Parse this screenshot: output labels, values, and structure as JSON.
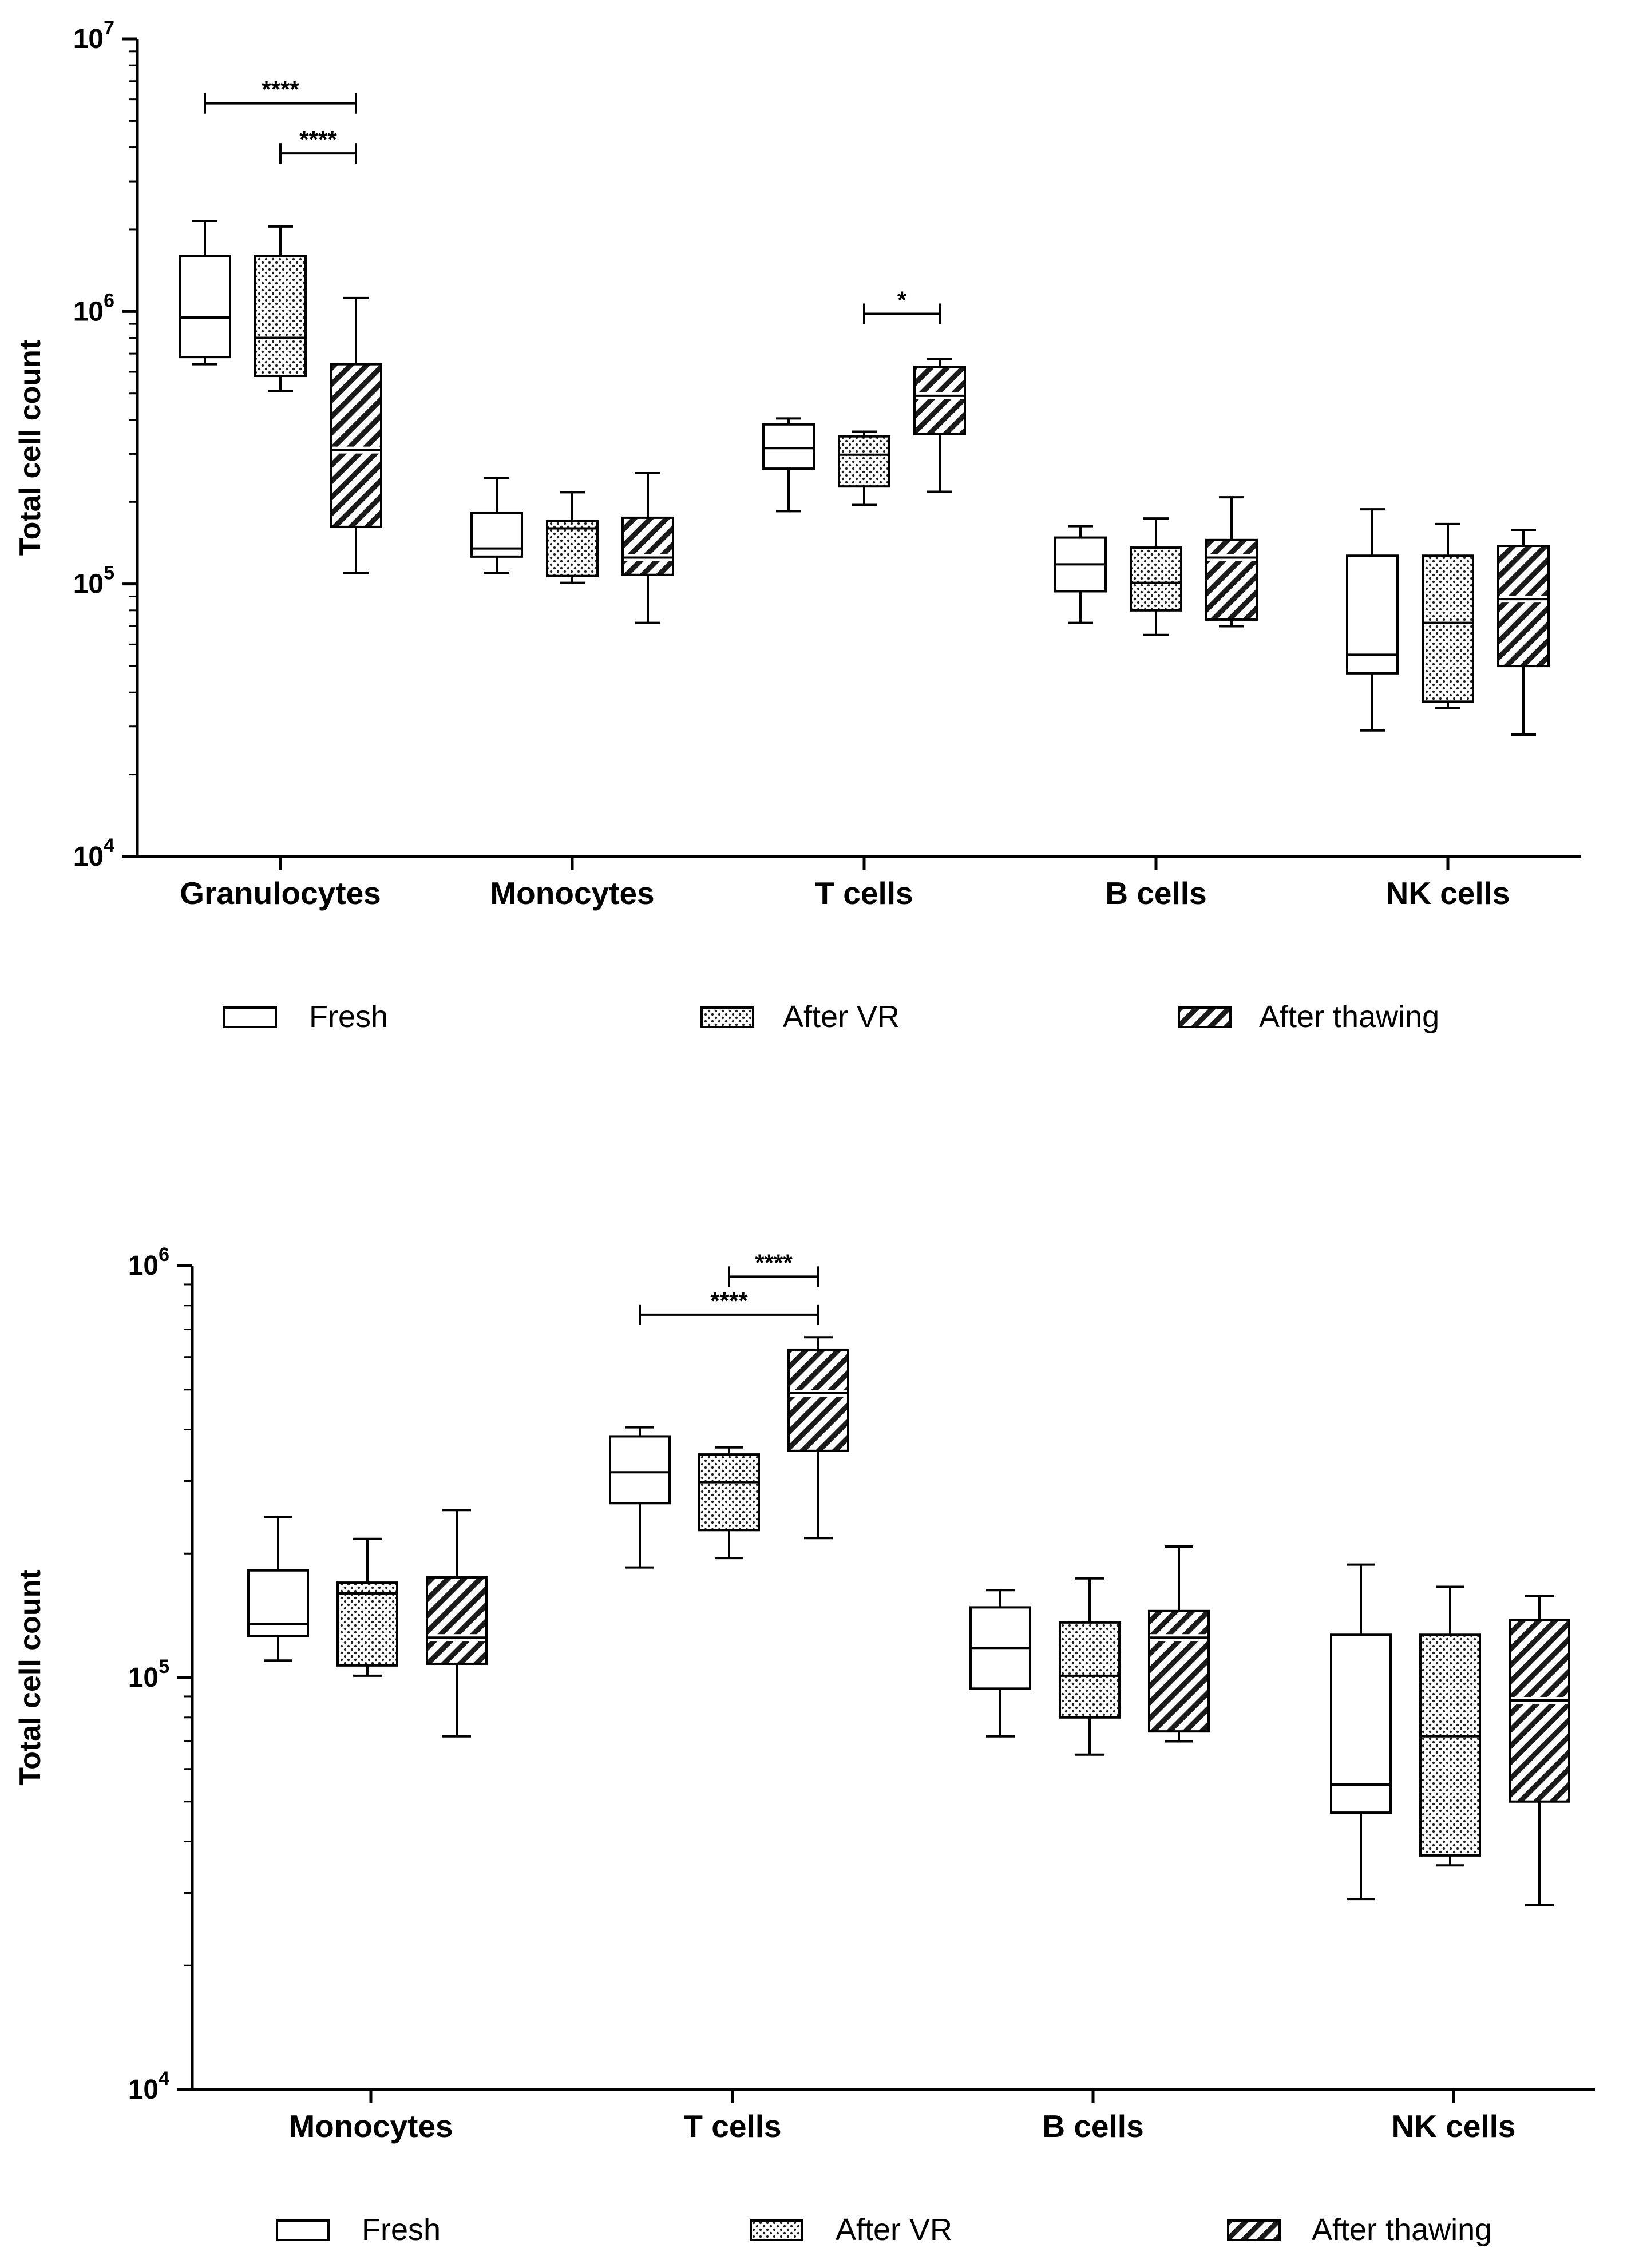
{
  "chart_data": [
    {
      "type": "boxplot",
      "yscale": "log10",
      "ylim": [
        10000,
        10000000
      ],
      "ylabel": "Total cell count",
      "yticks": [
        {
          "value": 10000,
          "base": "10",
          "exp": "4"
        },
        {
          "value": 100000,
          "base": "10",
          "exp": "5"
        },
        {
          "value": 1000000,
          "base": "10",
          "exp": "6"
        },
        {
          "value": 10000000,
          "base": "10",
          "exp": "7"
        }
      ],
      "categories": [
        "Granulocytes",
        "Monocytes",
        "T cells",
        "B cells",
        "NK cells"
      ],
      "series": [
        {
          "name": "Fresh",
          "pattern": "open",
          "boxes": [
            {
              "min": 640000,
              "q1": 680000,
              "median": 950000,
              "q3": 1600000,
              "max": 2150000
            },
            {
              "min": 110000,
              "q1": 126000,
              "median": 135000,
              "q3": 182000,
              "max": 245000
            },
            {
              "min": 185000,
              "q1": 265000,
              "median": 315000,
              "q3": 385000,
              "max": 405000
            },
            {
              "min": 72000,
              "q1": 94000,
              "median": 118000,
              "q3": 148000,
              "max": 163000
            },
            {
              "min": 29000,
              "q1": 47000,
              "median": 55000,
              "q3": 127000,
              "max": 188000
            }
          ]
        },
        {
          "name": "After VR",
          "pattern": "dots",
          "boxes": [
            {
              "min": 510000,
              "q1": 580000,
              "median": 800000,
              "q3": 1600000,
              "max": 2050000
            },
            {
              "min": 101000,
              "q1": 107000,
              "median": 160000,
              "q3": 170000,
              "max": 217000
            },
            {
              "min": 195000,
              "q1": 228000,
              "median": 298000,
              "q3": 348000,
              "max": 362000
            },
            {
              "min": 65000,
              "q1": 80000,
              "median": 101000,
              "q3": 136000,
              "max": 174000
            },
            {
              "min": 35000,
              "q1": 37000,
              "median": 72000,
              "q3": 127000,
              "max": 166000
            }
          ]
        },
        {
          "name": "After thawing",
          "pattern": "hatch",
          "boxes": [
            {
              "min": 110000,
              "q1": 162000,
              "median": 310000,
              "q3": 640000,
              "max": 1120000
            },
            {
              "min": 72000,
              "q1": 108000,
              "median": 125000,
              "q3": 175000,
              "max": 255000
            },
            {
              "min": 218000,
              "q1": 355000,
              "median": 490000,
              "q3": 625000,
              "max": 670000
            },
            {
              "min": 70000,
              "q1": 74000,
              "median": 125000,
              "q3": 145000,
              "max": 208000
            },
            {
              "min": 28000,
              "q1": 50000,
              "median": 88000,
              "q3": 138000,
              "max": 158000
            }
          ]
        }
      ],
      "significance": [
        {
          "category": "Granulocytes",
          "from": "Fresh",
          "to": "After thawing",
          "label": "****",
          "y": 5800000
        },
        {
          "category": "Granulocytes",
          "from": "After VR",
          "to": "After thawing",
          "label": "****",
          "y": 3800000
        },
        {
          "category": "T cells",
          "from": "After VR",
          "to": "After thawing",
          "label": "*",
          "y": 980000
        }
      ],
      "legend": [
        {
          "label": "Fresh",
          "pattern": "open"
        },
        {
          "label": "After VR",
          "pattern": "dots"
        },
        {
          "label": "After thawing",
          "pattern": "hatch"
        }
      ]
    },
    {
      "type": "boxplot",
      "yscale": "log10",
      "ylim": [
        10000,
        1000000
      ],
      "ylabel": "Total cell count",
      "yticks": [
        {
          "value": 10000,
          "base": "10",
          "exp": "4"
        },
        {
          "value": 100000,
          "base": "10",
          "exp": "5"
        },
        {
          "value": 1000000,
          "base": "10",
          "exp": "6"
        }
      ],
      "categories": [
        "Monocytes",
        "T cells",
        "B cells",
        "NK cells"
      ],
      "series": [
        {
          "name": "Fresh",
          "pattern": "open",
          "boxes": [
            {
              "min": 110000,
              "q1": 126000,
              "median": 135000,
              "q3": 182000,
              "max": 245000
            },
            {
              "min": 185000,
              "q1": 265000,
              "median": 315000,
              "q3": 385000,
              "max": 405000
            },
            {
              "min": 72000,
              "q1": 94000,
              "median": 118000,
              "q3": 148000,
              "max": 163000
            },
            {
              "min": 29000,
              "q1": 47000,
              "median": 55000,
              "q3": 127000,
              "max": 188000
            }
          ]
        },
        {
          "name": "After VR",
          "pattern": "dots",
          "boxes": [
            {
              "min": 101000,
              "q1": 107000,
              "median": 160000,
              "q3": 170000,
              "max": 217000
            },
            {
              "min": 195000,
              "q1": 228000,
              "median": 298000,
              "q3": 348000,
              "max": 362000
            },
            {
              "min": 65000,
              "q1": 80000,
              "median": 101000,
              "q3": 136000,
              "max": 174000
            },
            {
              "min": 35000,
              "q1": 37000,
              "median": 72000,
              "q3": 127000,
              "max": 166000
            }
          ]
        },
        {
          "name": "After thawing",
          "pattern": "hatch",
          "boxes": [
            {
              "min": 72000,
              "q1": 108000,
              "median": 125000,
              "q3": 175000,
              "max": 255000
            },
            {
              "min": 218000,
              "q1": 355000,
              "median": 490000,
              "q3": 625000,
              "max": 670000
            },
            {
              "min": 70000,
              "q1": 74000,
              "median": 125000,
              "q3": 145000,
              "max": 208000
            },
            {
              "min": 28000,
              "q1": 50000,
              "median": 88000,
              "q3": 138000,
              "max": 158000
            }
          ]
        }
      ],
      "significance": [
        {
          "category": "T cells",
          "from": "After VR",
          "to": "After thawing",
          "label": "****",
          "y": 940000
        },
        {
          "category": "T cells",
          "from": "Fresh",
          "to": "After thawing",
          "label": "****",
          "y": 760000
        }
      ],
      "legend": [
        {
          "label": "Fresh",
          "pattern": "open"
        },
        {
          "label": "After VR",
          "pattern": "dots"
        },
        {
          "label": "After thawing",
          "pattern": "hatch"
        }
      ]
    }
  ]
}
